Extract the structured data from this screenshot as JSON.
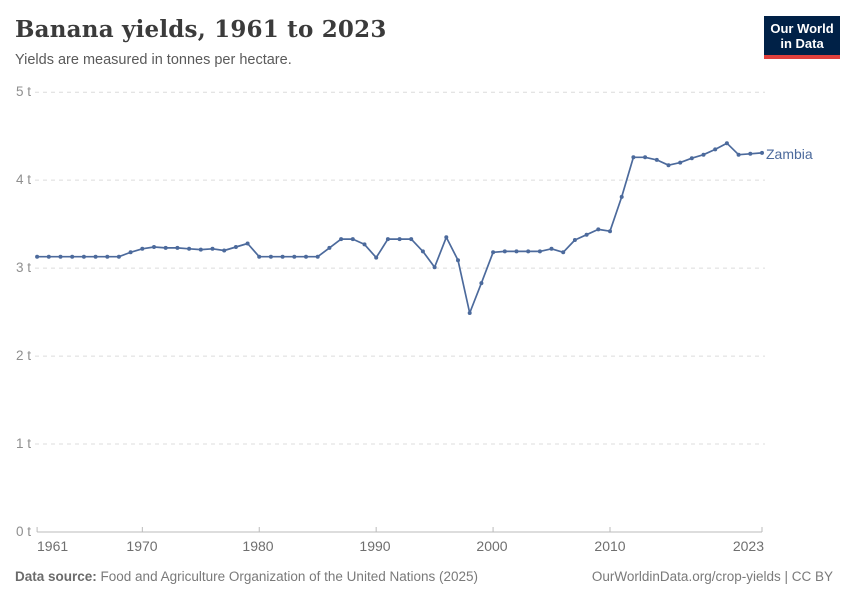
{
  "header": {
    "title": "Banana yields, 1961 to 2023",
    "subtitle": "Yields are measured in tonnes per hectare."
  },
  "logo": {
    "line1": "Our World",
    "line2": "in Data",
    "bg_color": "#002147",
    "accent_color": "#e0403c"
  },
  "axes": {
    "y_labels": [
      "5 t",
      "4 t",
      "3 t",
      "2 t",
      "1 t",
      "0 t"
    ],
    "x_labels": [
      "1961",
      "1970",
      "1980",
      "1990",
      "2000",
      "2010",
      "2023"
    ]
  },
  "series_label": "Zambia",
  "footer": {
    "source_label": "Data source:",
    "source_text": " Food and Agriculture Organization of the United Nations (2025)",
    "credit": "OurWorldinData.org/crop-yields | CC BY"
  },
  "chart_data": {
    "type": "line",
    "title": "Banana yields, 1961 to 2023",
    "subtitle": "Yields are measured in tonnes per hectare.",
    "ylabel": "tonnes per hectare",
    "ylim": [
      0,
      5
    ],
    "ytick_values": [
      0,
      1,
      2,
      3,
      4,
      5
    ],
    "ytick_labels": [
      "0 t",
      "1 t",
      "2 t",
      "3 t",
      "4 t",
      "5 t"
    ],
    "xticks": [
      1961,
      1970,
      1980,
      1990,
      2000,
      2010,
      2023
    ],
    "grid": "horizontal-dashed",
    "legend_position": "end-of-line-label",
    "line_color": "#4c6a9c",
    "x": [
      1961,
      1962,
      1963,
      1964,
      1965,
      1966,
      1967,
      1968,
      1969,
      1970,
      1971,
      1972,
      1973,
      1974,
      1975,
      1976,
      1977,
      1978,
      1979,
      1980,
      1981,
      1982,
      1983,
      1984,
      1985,
      1986,
      1987,
      1988,
      1989,
      1990,
      1991,
      1992,
      1993,
      1994,
      1995,
      1996,
      1997,
      1998,
      1999,
      2000,
      2001,
      2002,
      2003,
      2004,
      2005,
      2006,
      2007,
      2008,
      2009,
      2010,
      2011,
      2012,
      2013,
      2014,
      2015,
      2016,
      2017,
      2018,
      2019,
      2020,
      2021,
      2022,
      2023
    ],
    "series": [
      {
        "name": "Zambia",
        "color": "#4c6a9c",
        "values": [
          3.13,
          3.13,
          3.13,
          3.13,
          3.13,
          3.13,
          3.13,
          3.13,
          3.18,
          3.22,
          3.24,
          3.23,
          3.23,
          3.22,
          3.21,
          3.22,
          3.2,
          3.24,
          3.28,
          3.13,
          3.13,
          3.13,
          3.13,
          3.13,
          3.13,
          3.23,
          3.33,
          3.33,
          3.27,
          3.12,
          3.33,
          3.33,
          3.33,
          3.19,
          3.01,
          3.35,
          3.09,
          2.49,
          2.83,
          3.18,
          3.19,
          3.19,
          3.19,
          3.19,
          3.22,
          3.18,
          3.32,
          3.38,
          3.44,
          3.42,
          3.81,
          4.26,
          4.26,
          4.23,
          4.17,
          4.2,
          4.25,
          4.29,
          4.35,
          4.42,
          4.29,
          4.3,
          4.31
        ]
      }
    ]
  }
}
